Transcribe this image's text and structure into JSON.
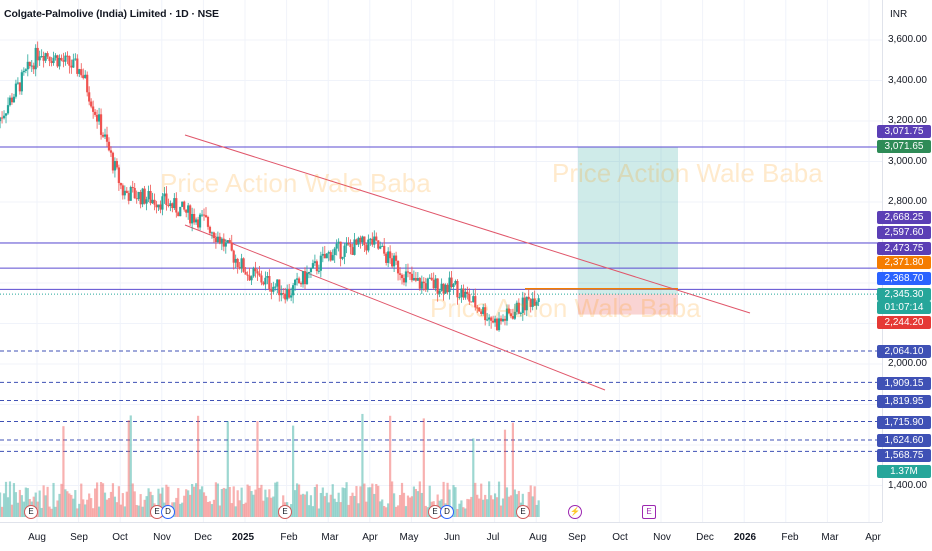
{
  "header": {
    "symbol_title": "Colgate-Palmolive (India) Limited · 1D · NSE",
    "currency": "INR"
  },
  "watermark": {
    "text": "Price Action Wale Baba"
  },
  "price_axis": {
    "ticks": [
      "3,600.00",
      "3,400.00",
      "3,200.00",
      "3,000.00",
      "2,800.00",
      "2,000.00",
      "1,400.00"
    ]
  },
  "price_badges": [
    {
      "value": "3,071.75",
      "color": "#5b3fb5"
    },
    {
      "value": "3,071.65",
      "color": "#2e8b57"
    },
    {
      "value": "2,668.25",
      "color": "#5b3fb5"
    },
    {
      "value": "2,597.60",
      "color": "#5b3fb5"
    },
    {
      "value": "2,473.75",
      "color": "#5b3fb5"
    },
    {
      "value": "2,371.80",
      "color": "#f57c00"
    },
    {
      "value": "2,368.70",
      "color": "#2962ff"
    },
    {
      "value": "2,345.30",
      "color": "#26a69a"
    },
    {
      "value": "01:07:14",
      "color": "#26a69a"
    },
    {
      "value": "2,244.20",
      "color": "#e53935"
    },
    {
      "value": "2,064.10",
      "color": "#3f51b5"
    },
    {
      "value": "1,909.15",
      "color": "#3f51b5"
    },
    {
      "value": "1,819.95",
      "color": "#3f51b5"
    },
    {
      "value": "1,715.90",
      "color": "#3f51b5"
    },
    {
      "value": "1,624.60",
      "color": "#3f51b5"
    },
    {
      "value": "1,568.75",
      "color": "#3f51b5"
    },
    {
      "value": "1.37M",
      "color": "#26a69a"
    }
  ],
  "time_axis": {
    "ticks": [
      "Aug",
      "Sep",
      "Oct",
      "Nov",
      "Dec",
      "2025",
      "Feb",
      "Mar",
      "Apr",
      "May",
      "Jun",
      "Jul",
      "Aug",
      "Sep",
      "Oct",
      "Nov",
      "Dec",
      "2026",
      "Feb",
      "Mar",
      "Apr"
    ]
  },
  "events": [
    "E",
    "E",
    "D",
    "E",
    "E",
    "D",
    "E",
    "⚡",
    "E"
  ],
  "chart_data": {
    "type": "candlestick",
    "symbol": "Colgate-Palmolive (India) Limited",
    "interval": "1D",
    "exchange": "NSE",
    "currency": "INR",
    "ylim": [
      1400,
      3700
    ],
    "last_price": 2345.3,
    "countdown": "01:07:14",
    "close_series_monthly": [
      {
        "x": "Aug 2024",
        "close": 3200
      },
      {
        "x": "Sep 2024",
        "close": 3550
      },
      {
        "x": "Oct 2024",
        "close": 3450
      },
      {
        "x": "Nov 2024",
        "close": 2850
      },
      {
        "x": "Dec 2024",
        "close": 2800
      },
      {
        "x": "Jan 2025",
        "close": 2700
      },
      {
        "x": "Feb 2025",
        "close": 2450
      },
      {
        "x": "Mar 2025",
        "close": 2350
      },
      {
        "x": "Apr 2025",
        "close": 2550
      },
      {
        "x": "May 2025",
        "close": 2600
      },
      {
        "x": "Jun 2025",
        "close": 2400
      },
      {
        "x": "Jul 2025",
        "close": 2380
      },
      {
        "x": "Aug 2025",
        "close": 2200
      },
      {
        "x": "Sep 2025",
        "close": 2345
      }
    ],
    "horizontal_levels": [
      3071.75,
      2597.6,
      2473.75,
      2368.7,
      2064.1,
      1909.15,
      1819.95,
      1715.9,
      1624.6,
      1568.75
    ],
    "position_tool": {
      "entry": 2345.3,
      "target": 3071.65,
      "stop": 2244.2,
      "target_color": "#26a69a",
      "stop_color": "#e53935"
    },
    "channel_lines": "descending",
    "volume_last": "1.37M"
  }
}
